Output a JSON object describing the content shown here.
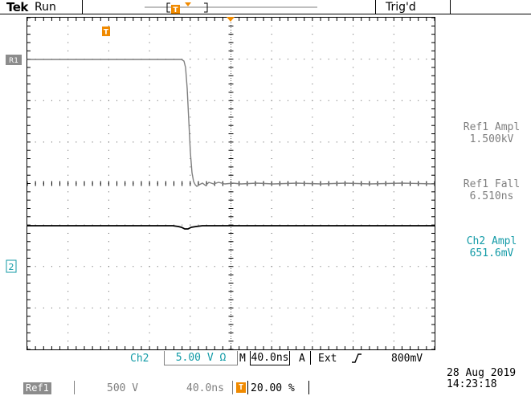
{
  "header": {
    "brand": "Tek",
    "run_state": "Run",
    "trigger_state": "Trig'd"
  },
  "markers": {
    "trigger_position_icon": "T",
    "ref1_marker": "R1",
    "ch2_marker": "2"
  },
  "measurements": [
    {
      "label": "Ref1 Ampl",
      "value": "1.500kV",
      "color": "#7f7f7f"
    },
    {
      "label": "Ref1 Fall",
      "value": "6.510ns",
      "color": "#7f7f7f"
    },
    {
      "label": "Ch2 Ampl",
      "value": "651.6mV",
      "color": "#119aa6"
    }
  ],
  "status": {
    "channel": "Ch2",
    "channel_scale": "5.00 V Ω",
    "timebase_prefix": "M",
    "timebase": "40.0ns",
    "trigger_mode": "A",
    "trigger_source": "Ext",
    "trigger_slope_icon": "rising-edge-icon",
    "trigger_level": "800mV"
  },
  "reference": {
    "name": "Ref1",
    "volts_per_div": "500 V",
    "time_per_div": "40.0ns",
    "position_icon": "T",
    "position": "20.00 %"
  },
  "datetime": {
    "date": "28 Aug 2019",
    "time": "14:23:18"
  },
  "colors": {
    "ref_trace": "#7f7f7f",
    "ch2_trace": "#000000",
    "accent_orange": "#f08a00",
    "teal": "#119aa6"
  }
}
